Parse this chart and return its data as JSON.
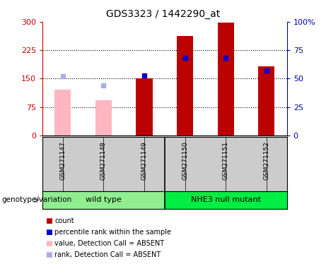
{
  "title": "GDS3323 / 1442290_at",
  "samples": [
    "GSM271147",
    "GSM271148",
    "GSM271149",
    "GSM271150",
    "GSM271151",
    "GSM271152"
  ],
  "group_wt_name": "wild type",
  "group_wt_color": "#90EE90",
  "group_nhe_name": "NHE3 null mutant",
  "group_nhe_color": "#00EE44",
  "count_values": [
    null,
    null,
    150,
    263,
    298,
    183
  ],
  "rank_values_pct": [
    null,
    null,
    53,
    68,
    68,
    57
  ],
  "absent_value_bars": [
    120,
    93,
    null,
    null,
    null,
    null
  ],
  "absent_rank_pct": [
    52,
    44,
    null,
    null,
    null,
    null
  ],
  "ylim_left": [
    0,
    300
  ],
  "ylim_right": [
    0,
    100
  ],
  "yticks_left": [
    0,
    75,
    150,
    225,
    300
  ],
  "yticks_right": [
    0,
    25,
    50,
    75,
    100
  ],
  "ytick_labels_left": [
    "0",
    "75",
    "150",
    "225",
    "300"
  ],
  "ytick_labels_right": [
    "0",
    "25",
    "50",
    "75",
    "100%"
  ],
  "left_axis_color": "#CC0000",
  "right_axis_color": "#0000BB",
  "bar_color_present": "#BB0000",
  "bar_color_absent": "#FFB6C1",
  "dot_color_present": "#0000CC",
  "dot_color_absent": "#AAAAEE",
  "legend_items": [
    {
      "label": "count",
      "color": "#BB0000"
    },
    {
      "label": "percentile rank within the sample",
      "color": "#0000CC"
    },
    {
      "label": "value, Detection Call = ABSENT",
      "color": "#FFB6C1"
    },
    {
      "label": "rank, Detection Call = ABSENT",
      "color": "#AAAAEE"
    }
  ],
  "genotype_label": "genotype/variation",
  "bg_color": "#CCCCCC",
  "plot_bg": "#FFFFFF",
  "bar_width": 0.4,
  "dot_size": 5
}
